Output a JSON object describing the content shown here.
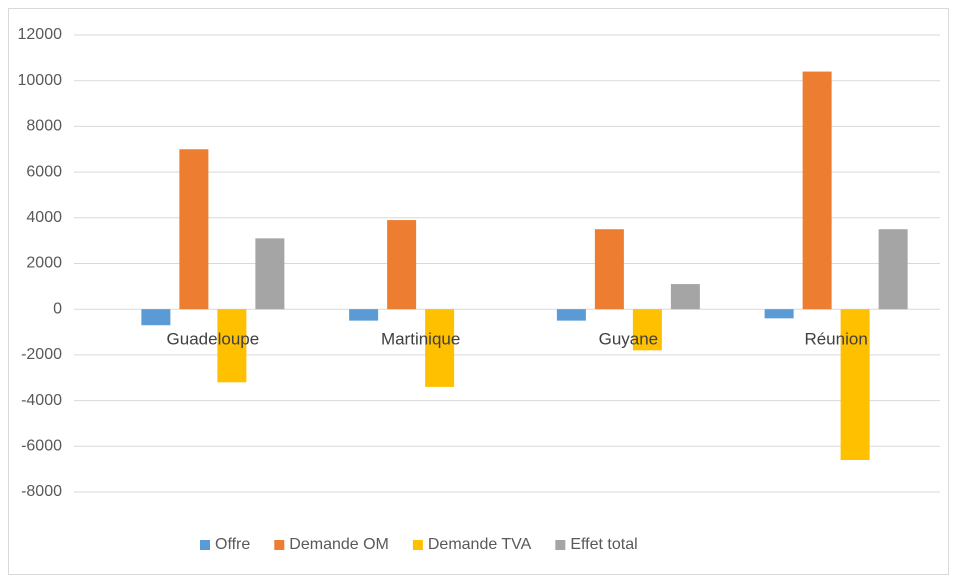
{
  "chart_data": {
    "type": "bar",
    "categories": [
      "Guadeloupe",
      "Martinique",
      "Guyane",
      "Réunion"
    ],
    "series": [
      {
        "name": "Offre",
        "color": "#5b9bd5",
        "values": [
          -700,
          -500,
          -500,
          -400
        ]
      },
      {
        "name": "Demande OM",
        "color": "#ed7d31",
        "values": [
          7000,
          3900,
          3500,
          10400
        ]
      },
      {
        "name": "Demande TVA",
        "color": "#ffc000",
        "values": [
          -3200,
          -3400,
          -1800,
          -6600
        ]
      },
      {
        "name": "Effet total",
        "color": "#a5a5a5",
        "values": [
          3100,
          0,
          1100,
          3500
        ]
      }
    ],
    "ylim": [
      -8000,
      12000
    ],
    "yticks": [
      -8000,
      -6000,
      -4000,
      -2000,
      0,
      2000,
      4000,
      6000,
      8000,
      10000,
      12000
    ],
    "grid": true,
    "legend": "bottom"
  }
}
